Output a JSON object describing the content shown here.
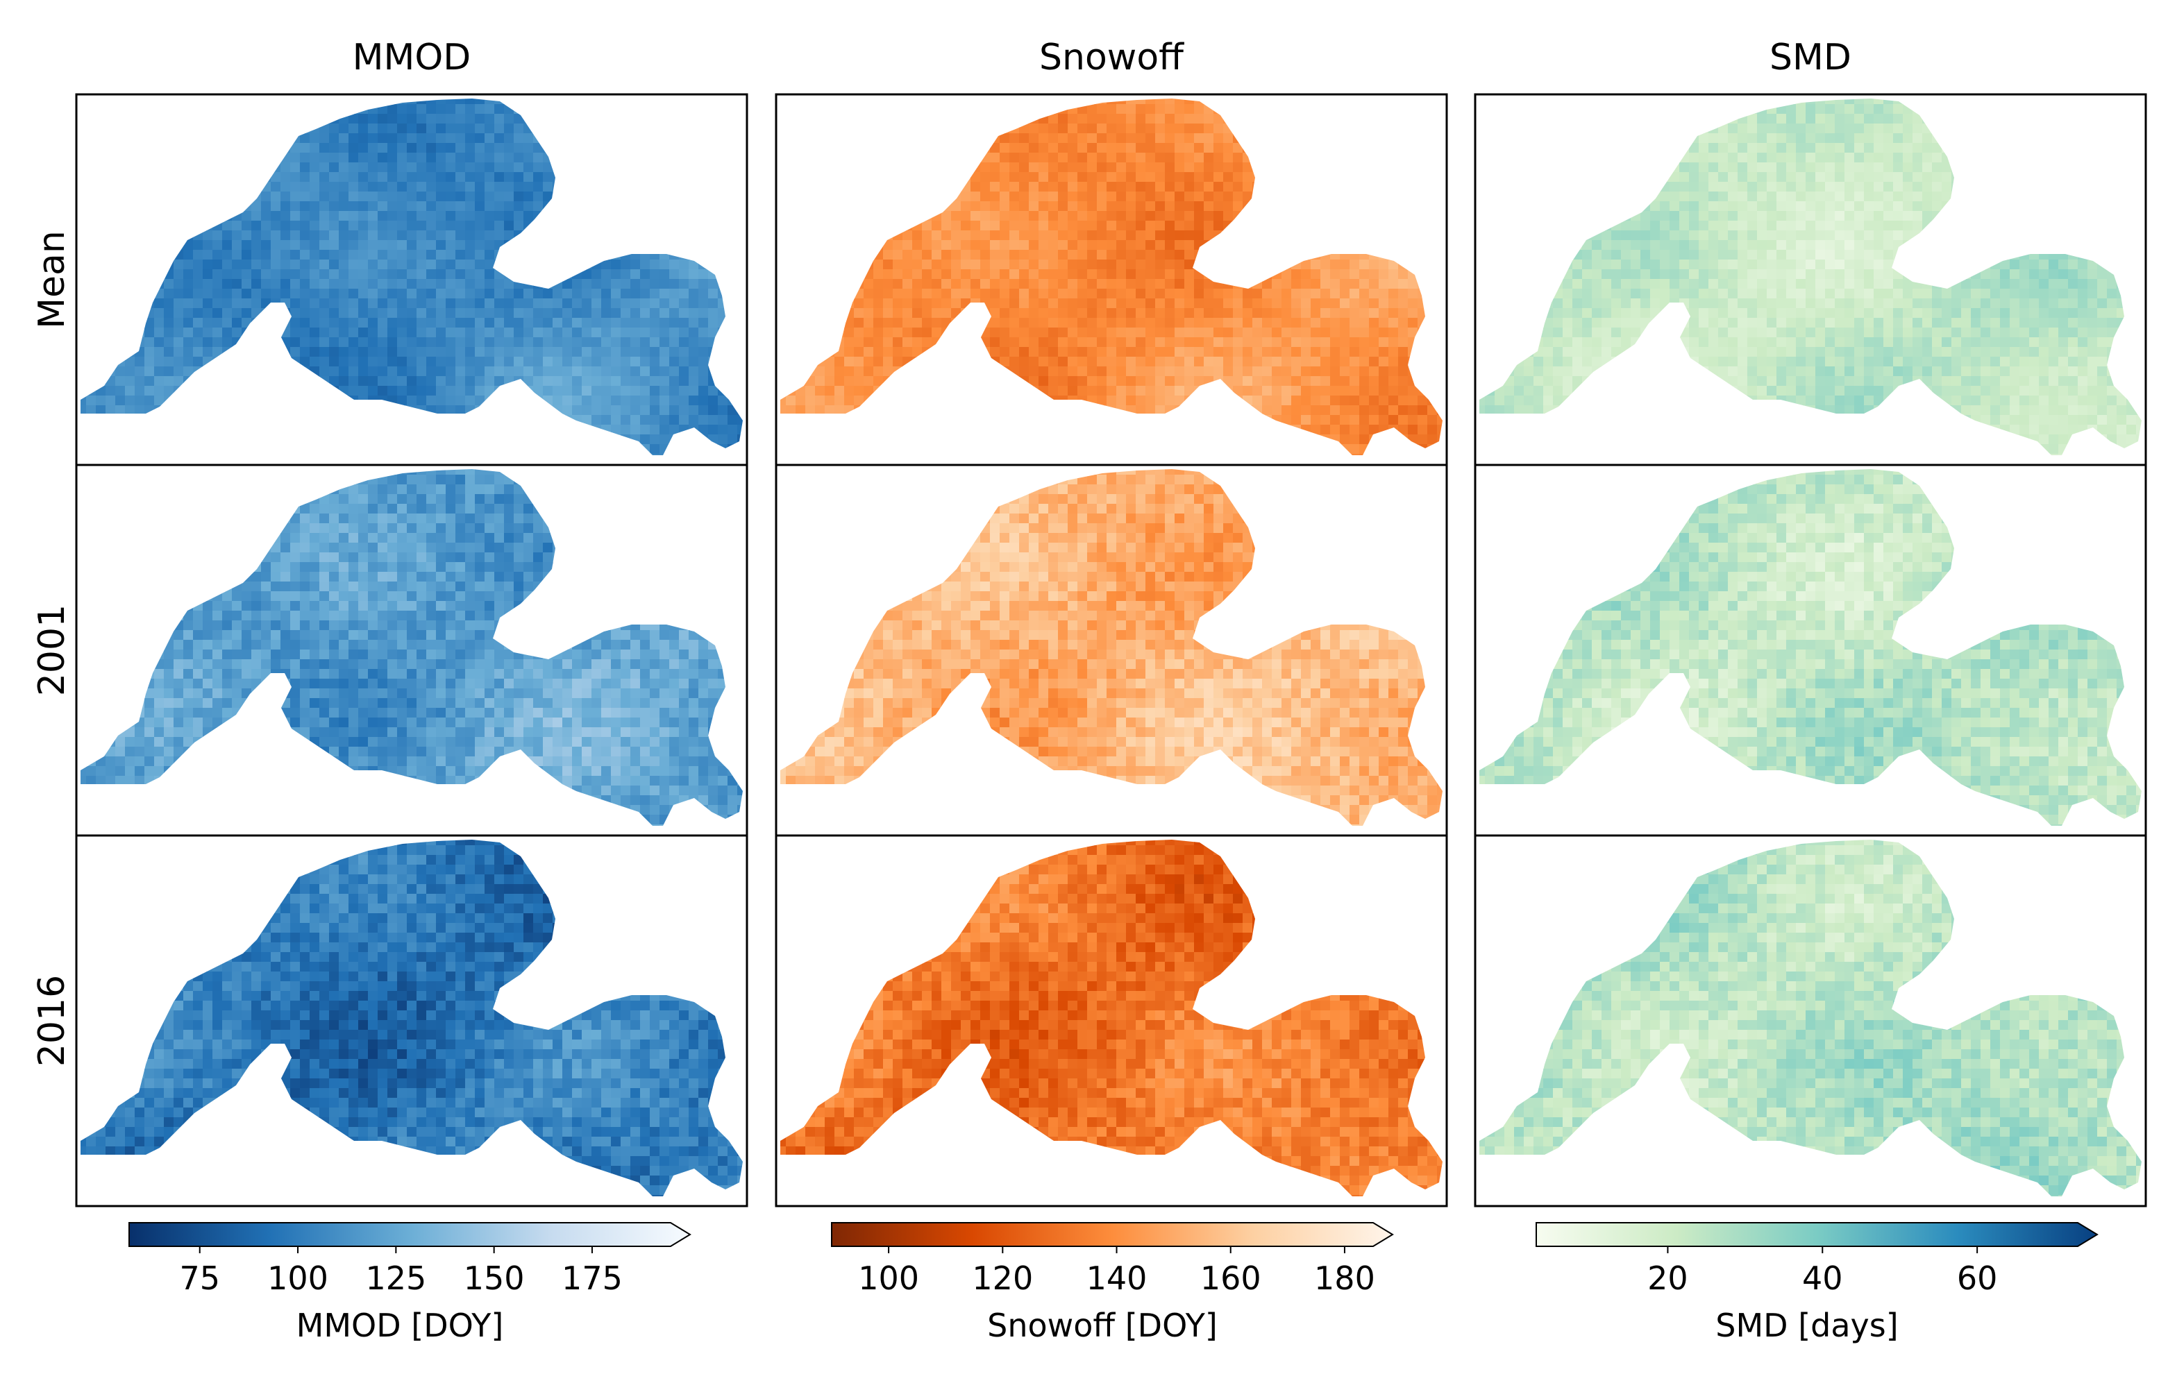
{
  "figure_description_hidden": null,
  "chart_data": {
    "type": "heatmap",
    "columns": [
      {
        "title": "MMOD",
        "colorbar_label": "MMOD [DOY]",
        "colormap": "Blues_r",
        "ticks": [
          75,
          100,
          125,
          150,
          175
        ],
        "range": [
          57,
          195
        ],
        "extend": "max",
        "colors": [
          "#08306b",
          "#2171b5",
          "#6baed6",
          "#c6dbef",
          "#f7fbff"
        ],
        "panel_means": {
          "Mean": 105,
          "2001": 118,
          "2016": 96
        }
      },
      {
        "title": "Snowoff",
        "colorbar_label": "Snowoff [DOY]",
        "colormap": "Oranges_r",
        "ticks": [
          100,
          120,
          140,
          160,
          180
        ],
        "range": [
          90,
          185
        ],
        "extend": "max",
        "colors": [
          "#7f2704",
          "#d94801",
          "#fd8d3c",
          "#fdd0a2",
          "#fff5eb"
        ],
        "panel_means": {
          "Mean": 138,
          "2001": 152,
          "2016": 130
        }
      },
      {
        "title": "SMD",
        "colorbar_label": "SMD [days]",
        "colormap": "GnBu",
        "ticks": [
          20,
          40,
          60
        ],
        "range": [
          3,
          73
        ],
        "extend": "max",
        "colors": [
          "#f7fcf0",
          "#ccebc5",
          "#7bccc4",
          "#2b8cbe",
          "#084081"
        ],
        "panel_means": {
          "Mean": 22,
          "2001": 24,
          "2016": 26
        }
      }
    ],
    "rows": [
      "Mean",
      "2001",
      "2016"
    ]
  }
}
